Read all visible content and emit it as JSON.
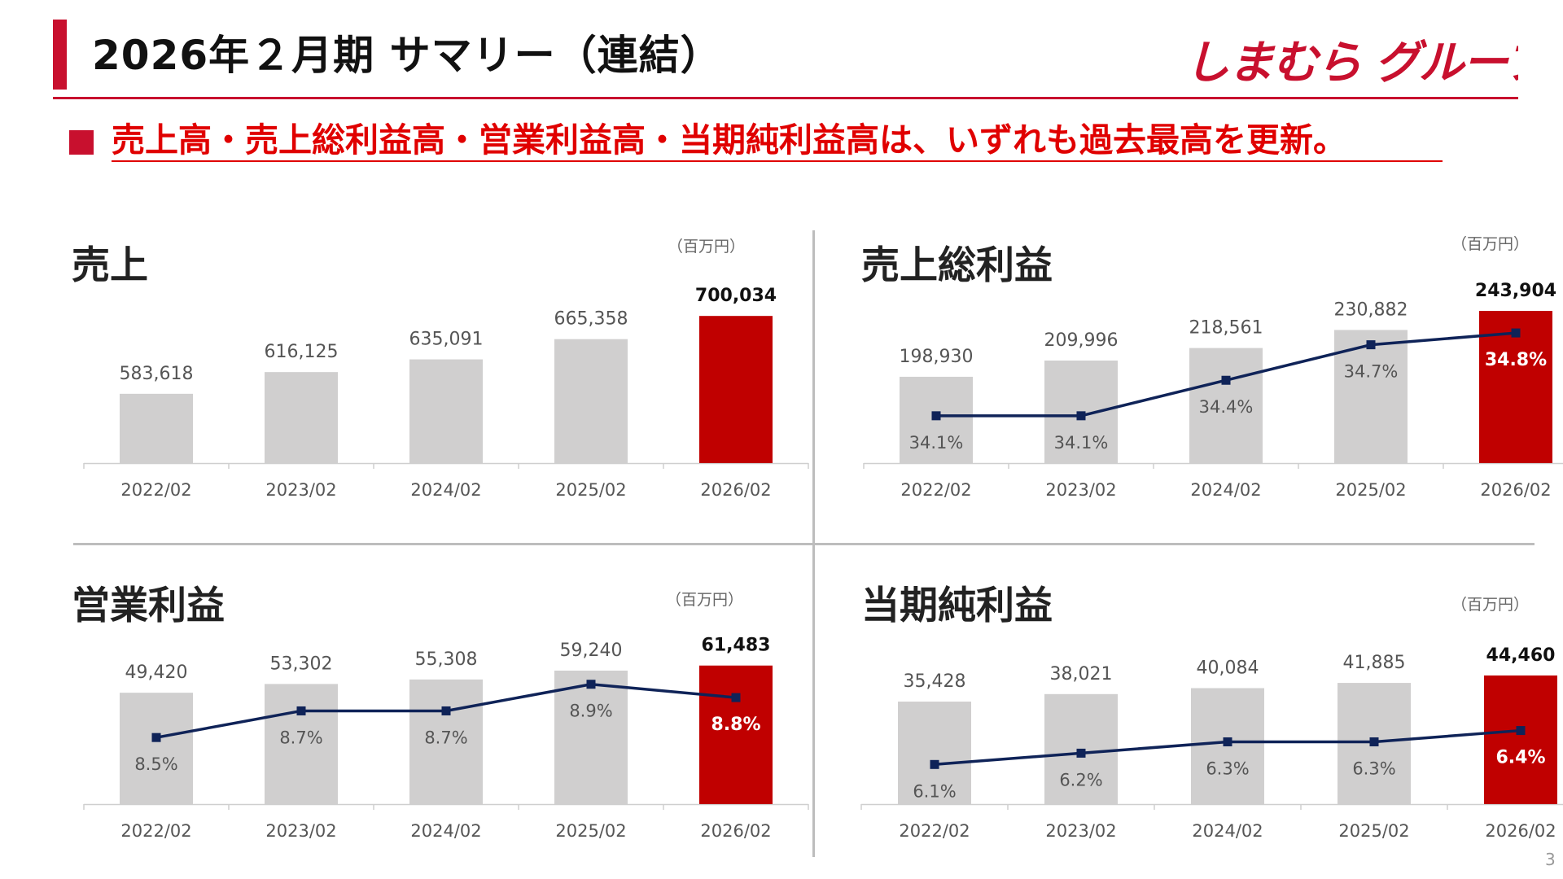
{
  "header": {
    "title": "2026年２月期 サマリー（連結）",
    "logo_text": "しまむら グループ"
  },
  "headline": "売上高・売上総利益高・営業利益高・当期純利益高は、いずれも過去最高を更新。",
  "page_number": "3",
  "colors": {
    "accent": "#c8102e",
    "headline": "#e00000",
    "bar_past": "#d0cfcf",
    "bar_current": "#c00000",
    "line": "#0f2358"
  },
  "panels": [
    {
      "title": "売上",
      "unit": "（百万円）",
      "chart_data": {
        "type": "bar",
        "categories": [
          "2022/02",
          "2023/02",
          "2024/02",
          "2025/02",
          "2026/02"
        ],
        "values": [
          583618,
          616125,
          635091,
          665358,
          700034
        ],
        "value_labels": [
          "583,618",
          "616,125",
          "635,091",
          "665,358",
          "700,034"
        ],
        "highlight_index": 4,
        "ylim": [
          480000,
          710000
        ]
      }
    },
    {
      "title": "売上総利益",
      "unit": "（百万円）",
      "chart_data": {
        "type": "bar",
        "categories": [
          "2022/02",
          "2023/02",
          "2024/02",
          "2025/02",
          "2026/02"
        ],
        "values": [
          198930,
          209996,
          218561,
          230882,
          243904
        ],
        "value_labels": [
          "198,930",
          "209,996",
          "218,561",
          "230,882",
          "243,904"
        ],
        "highlight_index": 4,
        "ylim": [
          140000,
          245000
        ],
        "ratio_series": {
          "values": [
            34.1,
            34.1,
            34.4,
            34.7,
            34.8
          ],
          "labels": [
            "34.1%",
            "34.1%",
            "34.4%",
            "34.7%",
            "34.8%"
          ],
          "ylim": [
            33.7,
            35.0
          ]
        }
      }
    },
    {
      "title": "営業利益",
      "unit": "（百万円）",
      "chart_data": {
        "type": "bar",
        "categories": [
          "2022/02",
          "2023/02",
          "2024/02",
          "2025/02",
          "2026/02"
        ],
        "values": [
          49420,
          53302,
          55308,
          59240,
          61483
        ],
        "value_labels": [
          "49,420",
          "53,302",
          "55,308",
          "59,240",
          "61,483"
        ],
        "highlight_index": 4,
        "ylim": [
          0,
          65000
        ],
        "ratio_series": {
          "values": [
            8.5,
            8.7,
            8.7,
            8.9,
            8.8
          ],
          "labels": [
            "8.5%",
            "8.7%",
            "8.7%",
            "8.9%",
            "8.8%"
          ],
          "ylim": [
            8.0,
            9.1
          ]
        }
      }
    },
    {
      "title": "当期純利益",
      "unit": "（百万円）",
      "chart_data": {
        "type": "bar",
        "categories": [
          "2022/02",
          "2023/02",
          "2024/02",
          "2025/02",
          "2026/02"
        ],
        "values": [
          35428,
          38021,
          40084,
          41885,
          44460
        ],
        "value_labels": [
          "35,428",
          "38,021",
          "40,084",
          "41,885",
          "44,460"
        ],
        "highlight_index": 4,
        "ylim": [
          0,
          45000
        ],
        "ratio_series": {
          "values": [
            6.1,
            6.2,
            6.3,
            6.3,
            6.4
          ],
          "labels": [
            "6.1%",
            "6.2%",
            "6.3%",
            "6.3%",
            "6.4%"
          ],
          "ylim": [
            5.75,
            6.9
          ]
        }
      }
    }
  ]
}
